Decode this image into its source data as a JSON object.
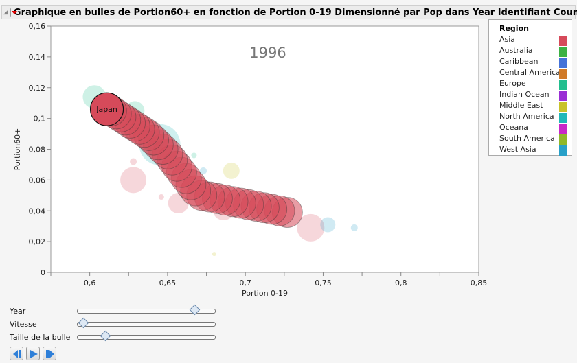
{
  "title": "Graphique en bulles de Portion60+ en fonction de Portion 0-19 Dimensionné par Pop dans Year Identifiant Country",
  "chart_data": {
    "type": "scatter",
    "subtype": "bubble",
    "year_label": "1996",
    "xlabel": "Portion 0-19",
    "ylabel": "Portion60+",
    "xlim": [
      0.575,
      0.85
    ],
    "ylim": [
      0,
      0.16
    ],
    "x_ticks": [
      "0,6",
      "0,65",
      "0,7",
      "0,75",
      "0,8",
      " 0,85"
    ],
    "x_tick_values": [
      0.6,
      0.65,
      0.7,
      0.75,
      0.8,
      0.85
    ],
    "y_ticks": [
      "0",
      "0,02",
      "0,04",
      "0,06",
      "0,08",
      "0,1",
      "0,12",
      "0,14",
      "0,16"
    ],
    "y_tick_values": [
      0,
      0.02,
      0.04,
      0.06,
      0.08,
      0.1,
      0.12,
      0.14,
      0.16
    ],
    "grid": false,
    "legend": {
      "title": "Region",
      "placement": "right",
      "items": [
        {
          "label": "Asia",
          "color": "#d64a5a"
        },
        {
          "label": "Australia",
          "color": "#3bb143"
        },
        {
          "label": "Caribbean",
          "color": "#4472d8"
        },
        {
          "label": "Central America",
          "color": "#d07a28"
        },
        {
          "label": "Europe",
          "color": "#22be8e"
        },
        {
          "label": "Indian Ocean",
          "color": "#9a2ed4"
        },
        {
          "label": "Middle East",
          "color": "#c8c22a"
        },
        {
          "label": "North America",
          "color": "#20b8b8"
        },
        {
          "label": "Oceana",
          "color": "#c828c8"
        },
        {
          "label": "South America",
          "color": "#8fb82a"
        },
        {
          "label": "West Asia",
          "color": "#28a0c8"
        }
      ]
    },
    "highlighted": {
      "label": "Japan",
      "region": "Asia",
      "x": 0.611,
      "y": 0.106
    },
    "japan_trail": {
      "x": [
        0.727,
        0.722,
        0.717,
        0.712,
        0.707,
        0.702,
        0.697,
        0.692,
        0.687,
        0.682,
        0.677,
        0.672,
        0.668,
        0.665,
        0.662,
        0.659,
        0.656,
        0.653,
        0.65,
        0.647,
        0.644,
        0.641,
        0.638,
        0.635,
        0.632,
        0.629,
        0.626,
        0.623,
        0.62,
        0.617,
        0.614
      ],
      "y": [
        0.039,
        0.04,
        0.041,
        0.042,
        0.043,
        0.044,
        0.045,
        0.046,
        0.047,
        0.048,
        0.049,
        0.05,
        0.053,
        0.057,
        0.061,
        0.065,
        0.069,
        0.073,
        0.077,
        0.08,
        0.083,
        0.086,
        0.089,
        0.091,
        0.093,
        0.095,
        0.097,
        0.099,
        0.101,
        0.103,
        0.105
      ]
    },
    "other_points": [
      {
        "region": "Europe",
        "x": 0.603,
        "y": 0.114,
        "size": 17
      },
      {
        "region": "Europe",
        "x": 0.629,
        "y": 0.105,
        "size": 14
      },
      {
        "region": "North America",
        "x": 0.645,
        "y": 0.083,
        "size": 30
      },
      {
        "region": "Europe",
        "x": 0.641,
        "y": 0.082,
        "size": 14
      },
      {
        "region": "Asia",
        "x": 0.628,
        "y": 0.06,
        "size": 19
      },
      {
        "region": "Asia",
        "x": 0.628,
        "y": 0.072,
        "size": 5
      },
      {
        "region": "Asia",
        "x": 0.657,
        "y": 0.045,
        "size": 15
      },
      {
        "region": "Asia",
        "x": 0.646,
        "y": 0.049,
        "size": 4
      },
      {
        "region": "Asia",
        "x": 0.686,
        "y": 0.041,
        "size": 16
      },
      {
        "region": "Asia",
        "x": 0.742,
        "y": 0.029,
        "size": 20
      },
      {
        "region": "Middle East",
        "x": 0.691,
        "y": 0.066,
        "size": 12
      },
      {
        "region": "West Asia",
        "x": 0.673,
        "y": 0.066,
        "size": 5
      },
      {
        "region": "Europe",
        "x": 0.667,
        "y": 0.076,
        "size": 4
      },
      {
        "region": "West Asia",
        "x": 0.753,
        "y": 0.031,
        "size": 11
      },
      {
        "region": "West Asia",
        "x": 0.77,
        "y": 0.029,
        "size": 5
      },
      {
        "region": "Middle East",
        "x": 0.68,
        "y": 0.012,
        "size": 3
      }
    ]
  },
  "controls": {
    "year": {
      "label": "Year",
      "value": 0.85
    },
    "speed": {
      "label": "Vitesse",
      "value": 0.04
    },
    "bubble_size": {
      "label": "Taille de la bulle",
      "value": 0.2
    },
    "buttons": [
      "step-back",
      "play",
      "step-forward"
    ]
  }
}
